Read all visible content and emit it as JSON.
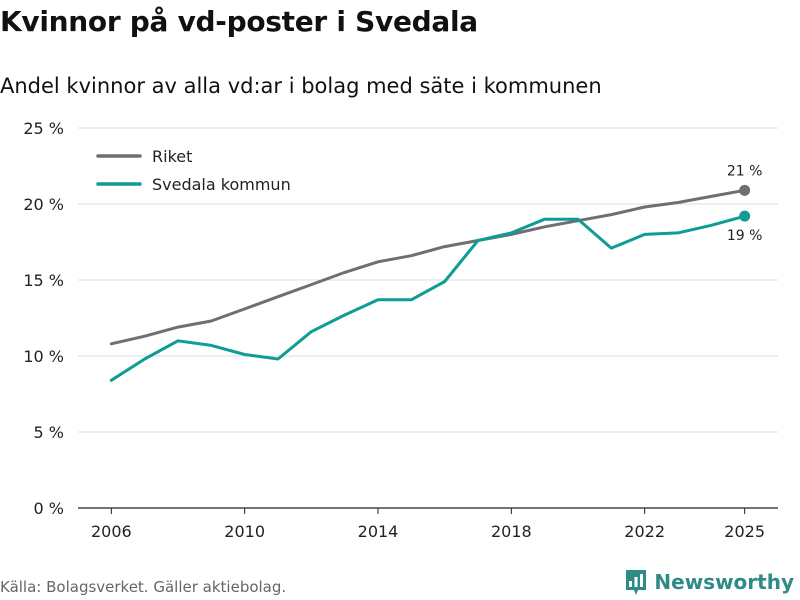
{
  "header": {
    "title": "Kvinnor på vd-poster i Svedala",
    "subtitle": "Andel kvinnor av alla vd:ar i bolag med säte i kommunen"
  },
  "footer": {
    "source": "Källa: Bolagsverket. Gäller aktiebolag.",
    "brand": "Newsworthy"
  },
  "chart_data": {
    "type": "line",
    "title": "Kvinnor på vd-poster i Svedala",
    "subtitle": "Andel kvinnor av alla vd:ar i bolag med säte i kommunen",
    "xlabel": "",
    "ylabel": "",
    "x": [
      2006,
      2007,
      2008,
      2009,
      2010,
      2011,
      2012,
      2013,
      2014,
      2015,
      2016,
      2017,
      2018,
      2019,
      2020,
      2021,
      2022,
      2023,
      2024,
      2025
    ],
    "x_ticks": [
      2006,
      2010,
      2014,
      2018,
      2022,
      2025
    ],
    "x_tick_labels": [
      "2006",
      "2010",
      "2014",
      "2018",
      "2022",
      "2025"
    ],
    "xlim": [
      2005,
      2026
    ],
    "ylim": [
      0,
      25
    ],
    "y_ticks": [
      0,
      5,
      10,
      15,
      20,
      25
    ],
    "y_tick_labels": [
      "0 %",
      "5 %",
      "10 %",
      "15 %",
      "20 %",
      "25 %"
    ],
    "grid": true,
    "legend_position": "top-left",
    "series": [
      {
        "name": "Riket",
        "color": "#6e6e73",
        "values": [
          10.8,
          11.3,
          11.9,
          12.3,
          13.1,
          13.9,
          14.7,
          15.5,
          16.2,
          16.6,
          17.2,
          17.6,
          18.0,
          18.5,
          18.9,
          19.3,
          19.8,
          20.1,
          20.5,
          20.9
        ],
        "end_label": "21 %"
      },
      {
        "name": "Svedala kommun",
        "color": "#0e9c94",
        "values": [
          8.4,
          9.8,
          11.0,
          10.7,
          10.1,
          9.8,
          11.6,
          12.7,
          13.7,
          13.7,
          14.9,
          17.6,
          18.1,
          19.0,
          19.0,
          17.1,
          18.0,
          18.1,
          18.6,
          19.2
        ],
        "end_label": "19 %"
      }
    ]
  }
}
